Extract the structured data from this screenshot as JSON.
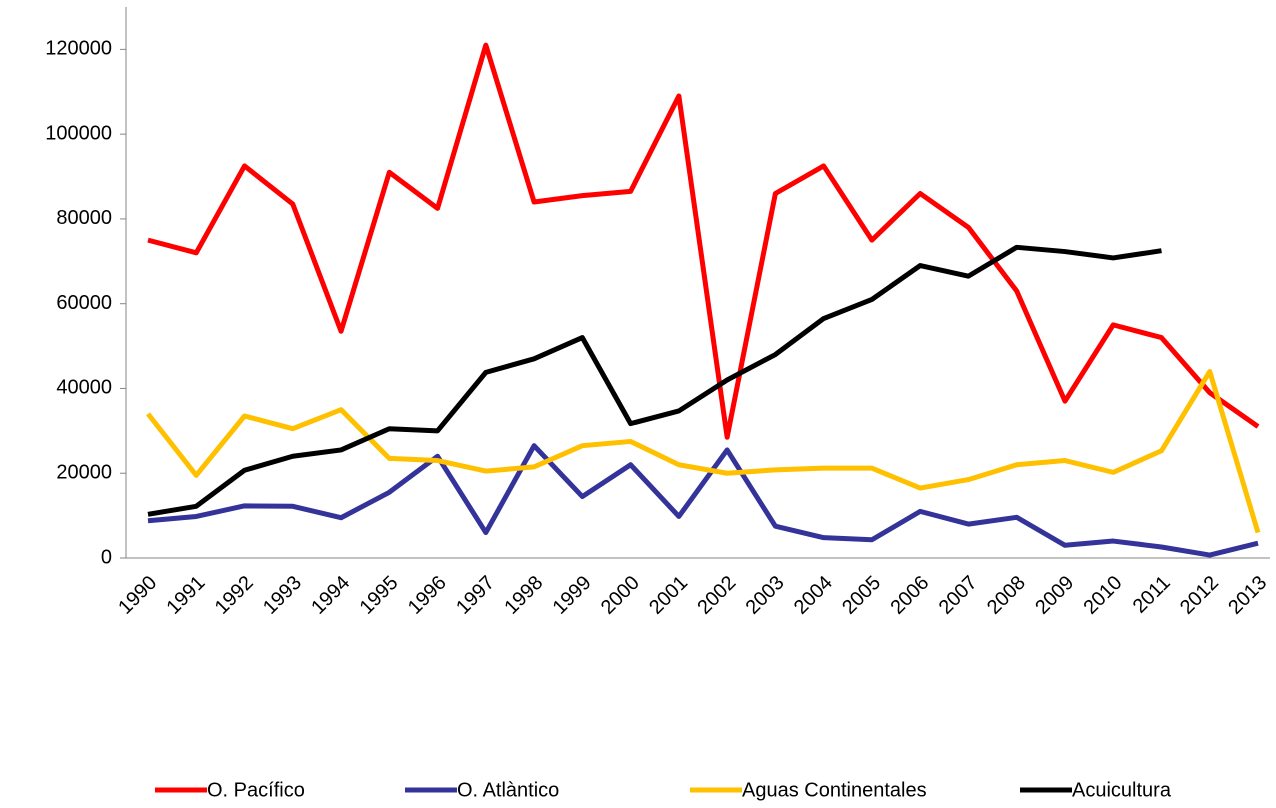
{
  "chart_data": {
    "type": "line",
    "categories": [
      "1990",
      "1991",
      "1992",
      "1993",
      "1994",
      "1995",
      "1996",
      "1997",
      "1998",
      "1999",
      "2000",
      "2001",
      "2002",
      "2003",
      "2004",
      "2005",
      "2006",
      "2007",
      "2008",
      "2009",
      "2010",
      "2011",
      "2012",
      "2013"
    ],
    "series": [
      {
        "name": "O. Pacífico",
        "color": "#ff0000",
        "values": [
          75000,
          72000,
          92500,
          83500,
          53500,
          91000,
          82500,
          121000,
          84000,
          85500,
          86500,
          109000,
          28500,
          86000,
          92500,
          75000,
          86000,
          78000,
          63000,
          37000,
          55000,
          52000,
          39000,
          31000
        ]
      },
      {
        "name": "O. Atlàntico",
        "color": "#333399",
        "values": [
          8800,
          9800,
          12300,
          12200,
          9500,
          15500,
          24000,
          6000,
          26500,
          14500,
          22000,
          9800,
          25500,
          7500,
          4800,
          4300,
          11000,
          8000,
          9600,
          3000,
          4000,
          2600,
          700,
          3500
        ]
      },
      {
        "name": "Aguas Continentales",
        "color": "#ffc000",
        "values": [
          34000,
          19500,
          33500,
          30500,
          35000,
          23500,
          23000,
          20500,
          21500,
          26500,
          27500,
          22000,
          20000,
          20800,
          21200,
          21200,
          16500,
          18500,
          22000,
          23000,
          20200,
          25300,
          44000,
          6000
        ]
      },
      {
        "name": "Acuicultura",
        "color": "#000000",
        "values": [
          10300,
          12200,
          20700,
          24000,
          25500,
          30500,
          30000,
          43800,
          47000,
          52000,
          31700,
          34700,
          42000,
          48000,
          56500,
          61000,
          69000,
          66500,
          73300,
          72300,
          70800,
          72500,
          null,
          null
        ]
      }
    ],
    "ylim": [
      0,
      130000
    ],
    "yticks": [
      0,
      20000,
      40000,
      60000,
      80000,
      100000,
      120000
    ]
  }
}
